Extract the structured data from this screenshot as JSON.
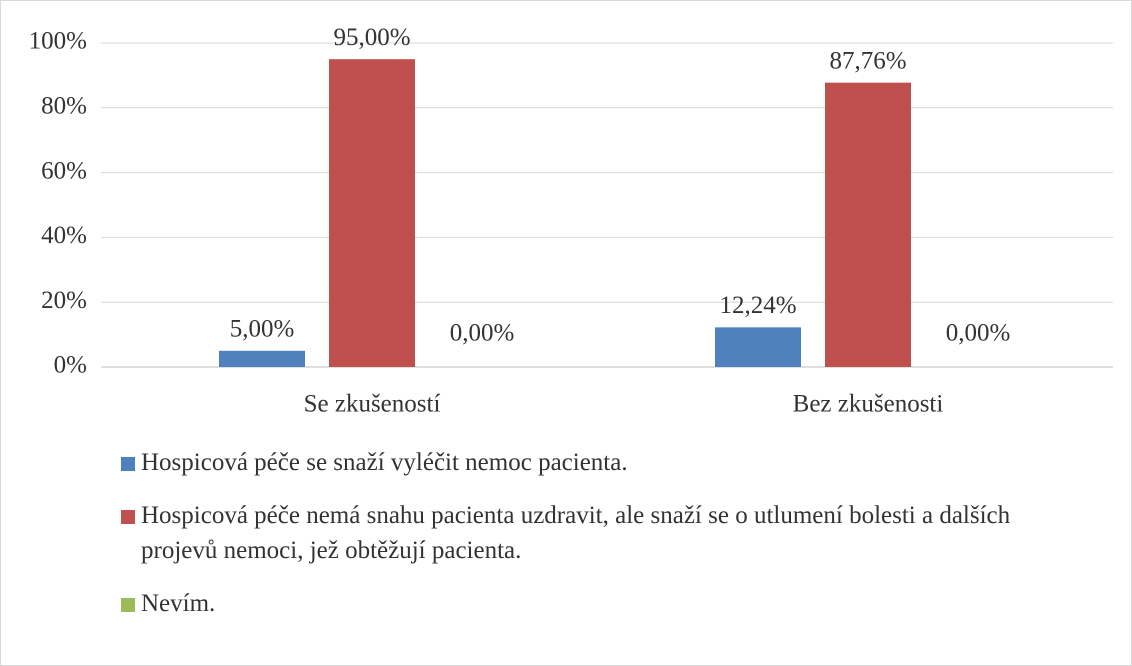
{
  "chart_data": {
    "type": "bar",
    "categories": [
      "Se zkušeností",
      "Bez zkušenosti"
    ],
    "series": [
      {
        "name": "Hospicová péče se snaží vyléčit nemoc pacienta.",
        "color": "#4f81bd",
        "values": [
          5,
          12.24
        ],
        "value_labels": [
          "5,00%",
          "12,24%"
        ]
      },
      {
        "name": "Hospicová péče nemá snahu pacienta uzdravit, ale snaží se o utlumení bolesti a dalších projevů nemoci, jež obtěžují pacienta.",
        "color": "#c0504d",
        "values": [
          95,
          87.76
        ],
        "value_labels": [
          "95,00%",
          "87,76%"
        ]
      },
      {
        "name": "Nevím.",
        "color": "#9bbb59",
        "values": [
          0,
          0
        ],
        "value_labels": [
          "0,00%",
          "0,00%"
        ]
      }
    ],
    "ylim": [
      0,
      100
    ],
    "yticks": [
      {
        "value": 0,
        "label": "0%"
      },
      {
        "value": 20,
        "label": "20%"
      },
      {
        "value": 40,
        "label": "40%"
      },
      {
        "value": 60,
        "label": "60%"
      },
      {
        "value": 80,
        "label": "80%"
      },
      {
        "value": 100,
        "label": "100%"
      }
    ],
    "grid": true
  }
}
